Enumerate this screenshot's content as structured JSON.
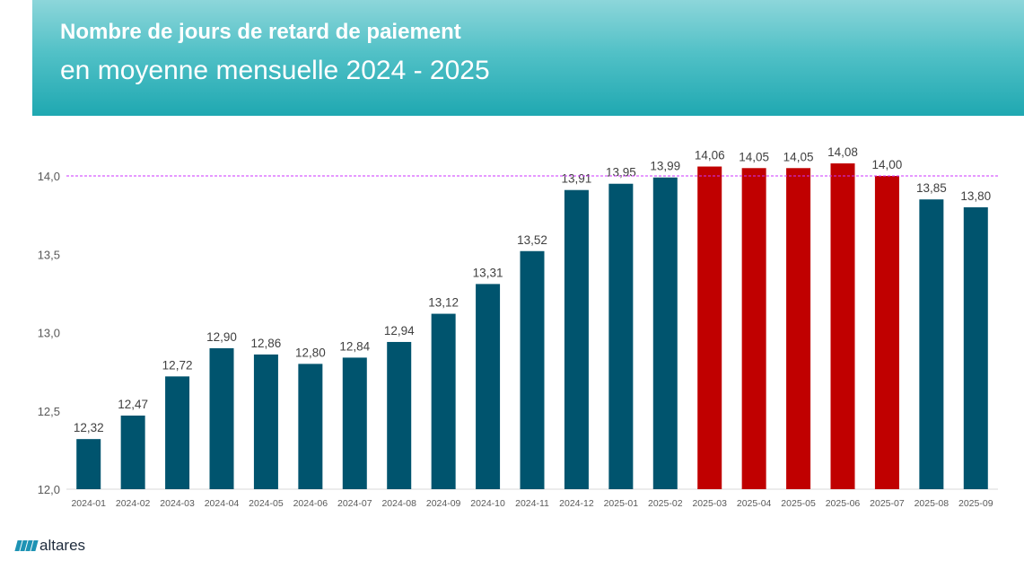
{
  "header": {
    "title": "Nombre de jours de retard de paiement",
    "subtitle": "en moyenne mensuelle 2024 - 2025"
  },
  "logo": {
    "text": "altares"
  },
  "colors": {
    "bar_default": "#00546e",
    "bar_highlight": "#c00000",
    "reference_line": "#cc33ff",
    "axis_text": "#595959",
    "label_text": "#404040"
  },
  "chart_data": {
    "type": "bar",
    "title": "",
    "xlabel": "",
    "ylabel": "",
    "ylim": [
      12.0,
      14.3
    ],
    "yticks": [
      "12,0",
      "12,5",
      "13,0",
      "13,5",
      "14,0"
    ],
    "ytick_values": [
      12.0,
      12.5,
      13.0,
      13.5,
      14.0
    ],
    "reference_line": 14.0,
    "categories": [
      "2024-01",
      "2024-02",
      "2024-03",
      "2024-04",
      "2024-05",
      "2024-06",
      "2024-07",
      "2024-08",
      "2024-09",
      "2024-10",
      "2024-11",
      "2024-12",
      "2025-01",
      "2025-02",
      "2025-03",
      "2025-04",
      "2025-05",
      "2025-06",
      "2025-07",
      "2025-08",
      "2025-09"
    ],
    "values": [
      12.32,
      12.47,
      12.72,
      12.9,
      12.86,
      12.8,
      12.84,
      12.94,
      13.12,
      13.31,
      13.52,
      13.91,
      13.95,
      13.99,
      14.06,
      14.05,
      14.05,
      14.08,
      14.0,
      13.85,
      13.8
    ],
    "labels": [
      "12,32",
      "12,47",
      "12,72",
      "12,90",
      "12,86",
      "12,80",
      "12,84",
      "12,94",
      "13,12",
      "13,31",
      "13,52",
      "13,91",
      "13,95",
      "13,99",
      "14,06",
      "14,05",
      "14,05",
      "14,08",
      "14,00",
      "13,85",
      "13,80"
    ],
    "highlighted": [
      "2025-03",
      "2025-04",
      "2025-05",
      "2025-06",
      "2025-07"
    ]
  }
}
